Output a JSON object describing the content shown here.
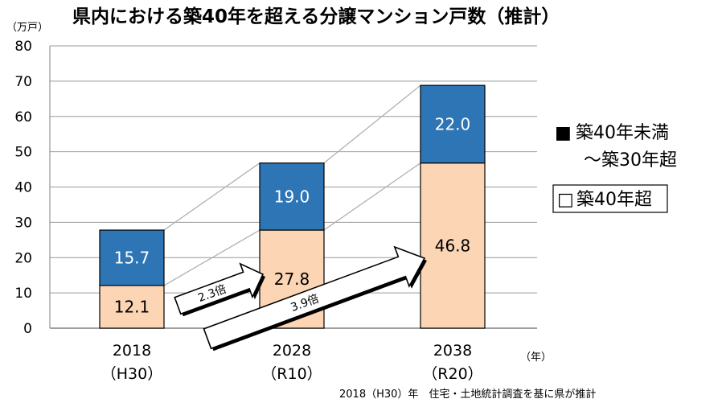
{
  "chart_data": {
    "type": "bar",
    "stacked": true,
    "title": "県内における築40年を超える分譲マンション戸数（推計）",
    "ylabel": "（万戸）",
    "xlabel": "（年）",
    "ylim": [
      0,
      80
    ],
    "yticks": [
      "0",
      "10",
      "20",
      "30",
      "40",
      "50",
      "60",
      "70",
      "80"
    ],
    "grid": true,
    "legend_position": "right",
    "categories": [
      "2018",
      "2028",
      "2038"
    ],
    "category_sublabels": [
      "（H30）",
      "（R10）",
      "（R20）"
    ],
    "series": [
      {
        "name": "築40年超",
        "values": [
          12.1,
          27.8,
          46.8
        ],
        "value_labels": [
          "12.1",
          "27.8",
          "46.8"
        ],
        "color": "#fcd5b5"
      },
      {
        "name": "築40年未満～築30年超",
        "values": [
          15.7,
          19.0,
          22.0
        ],
        "value_labels": [
          "15.7",
          "19.0",
          "22.0"
        ],
        "color": "#2e75b6"
      }
    ],
    "legend": [
      {
        "marker": "■",
        "line1": "築40年未満",
        "line2": "～築30年超",
        "color": "#2e75b6"
      },
      {
        "marker": "□",
        "line1": "築40年超",
        "line2": "",
        "color": "#fcd5b5"
      }
    ],
    "annotations": [
      {
        "label": "2.3倍",
        "from": "2018",
        "to": "2028"
      },
      {
        "label": "3.9倍",
        "from": "2018",
        "to": "2038"
      }
    ],
    "source": "2018（H30）年　住宅・土地統計調査を基に県が推計"
  }
}
